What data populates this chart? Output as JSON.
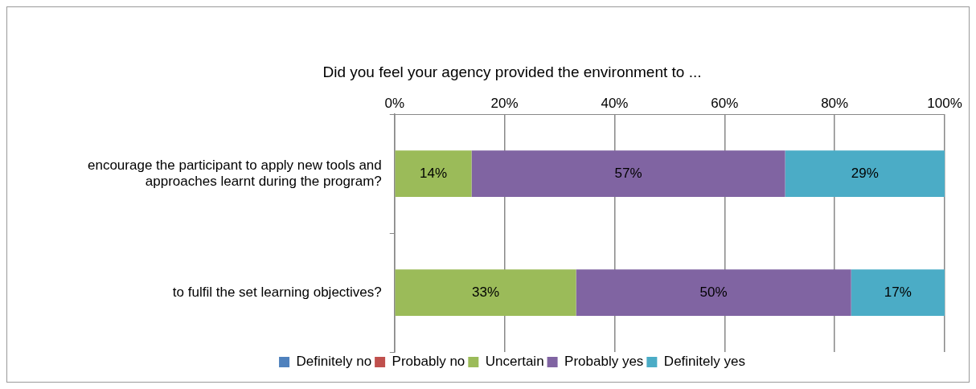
{
  "chart_data": {
    "type": "bar",
    "orientation": "horizontal",
    "stacked": true,
    "title": "Did you feel your agency provided the environment to ...",
    "categories": [
      "encourage the participant to apply new tools and approaches learnt during the program?",
      "to fulfil the set learning objectives?"
    ],
    "series": [
      {
        "name": "Definitely no",
        "color": "#4f81bd",
        "values": [
          0,
          0
        ],
        "value_labels": [
          null,
          null
        ]
      },
      {
        "name": "Probably no",
        "color": "#c0504d",
        "values": [
          0,
          0
        ],
        "value_labels": [
          null,
          null
        ]
      },
      {
        "name": "Uncertain",
        "color": "#9bbb59",
        "values": [
          14,
          33
        ],
        "value_labels": [
          "14%",
          "33%"
        ]
      },
      {
        "name": "Probably yes",
        "color": "#8064a2",
        "values": [
          57,
          50
        ],
        "value_labels": [
          "57%",
          "50%"
        ]
      },
      {
        "name": "Definitely yes",
        "color": "#4bacc6",
        "values": [
          29,
          17
        ],
        "value_labels": [
          "29%",
          "17%"
        ]
      }
    ],
    "xlim": [
      0,
      100
    ],
    "xticks": [
      {
        "value": 0,
        "label": "0%"
      },
      {
        "value": 20,
        "label": "20%"
      },
      {
        "value": 40,
        "label": "40%"
      },
      {
        "value": 60,
        "label": "60%"
      },
      {
        "value": 80,
        "label": "80%"
      },
      {
        "value": 100,
        "label": "100%"
      }
    ],
    "grid": "x",
    "legend": "bottom"
  }
}
